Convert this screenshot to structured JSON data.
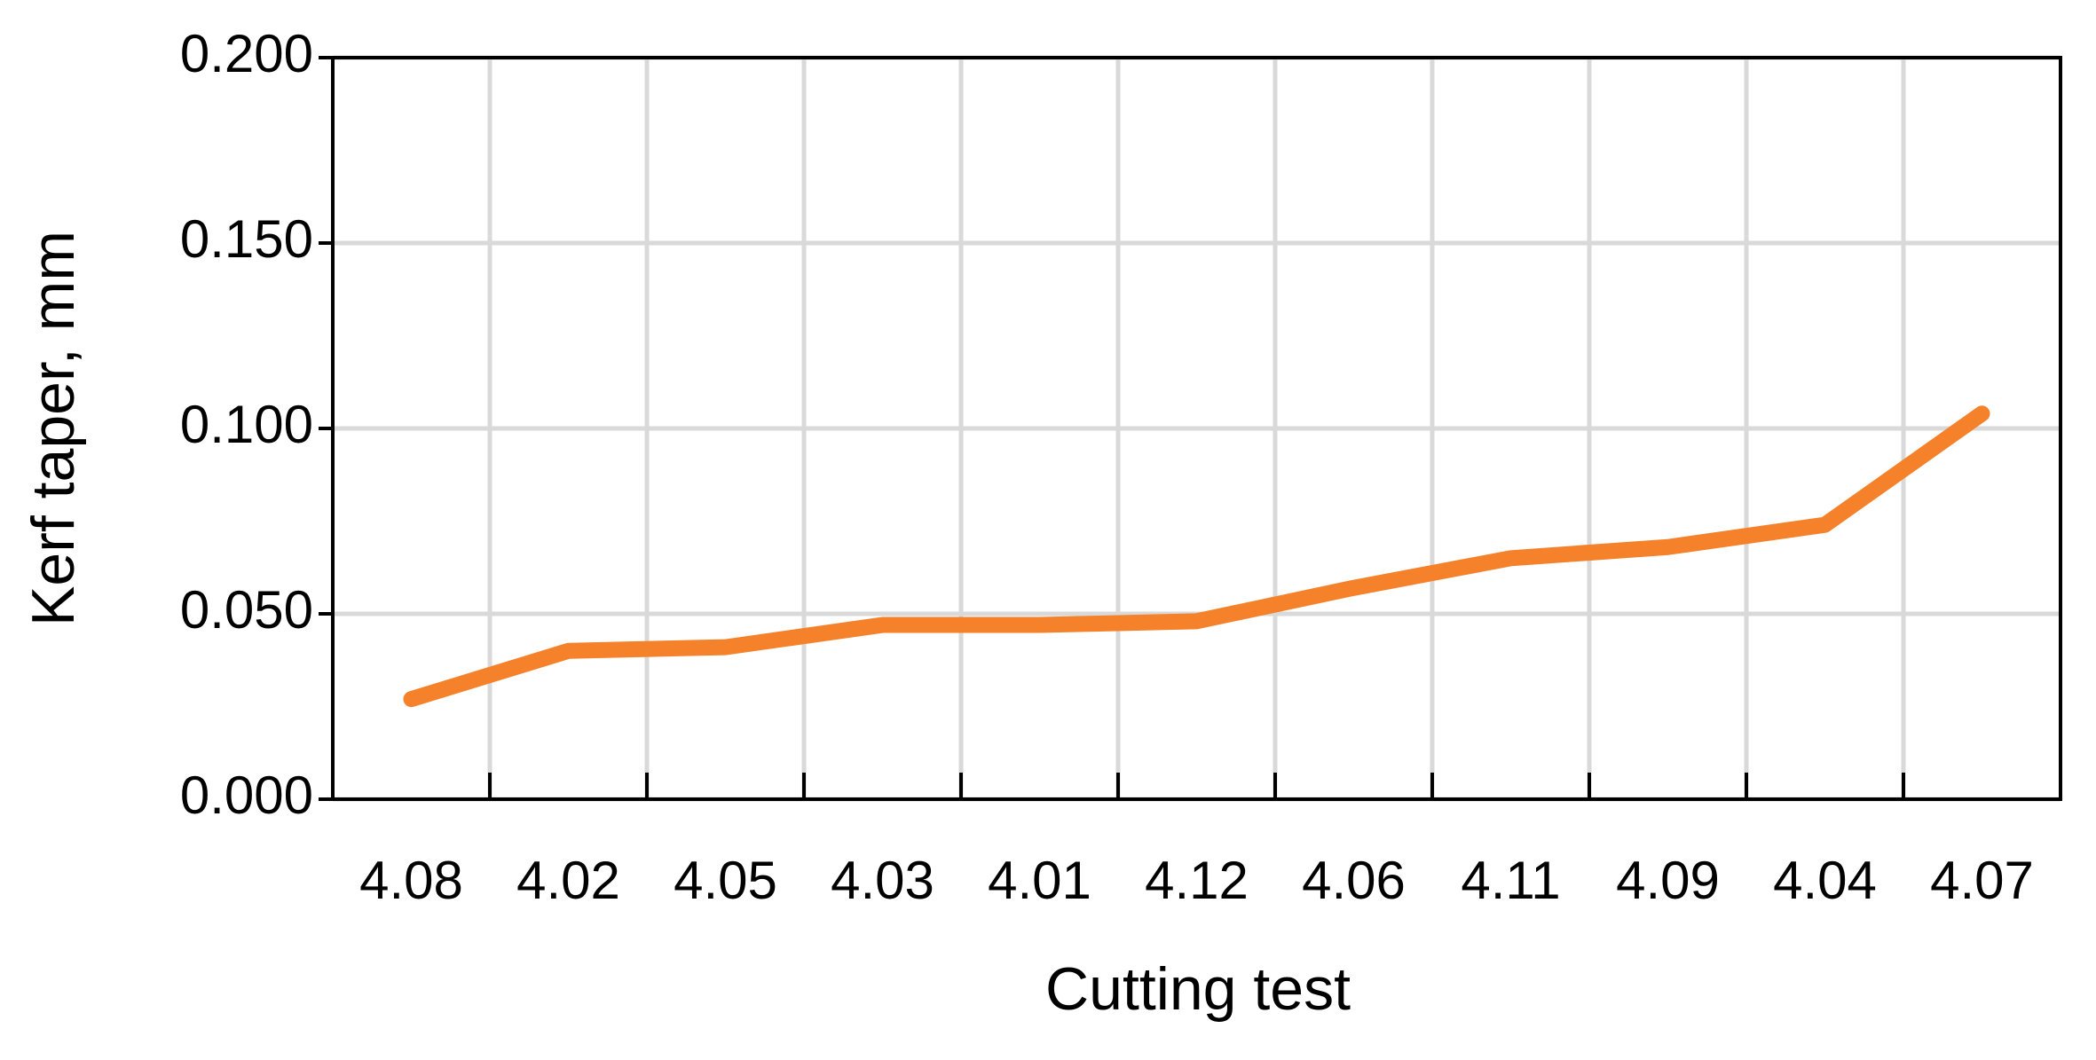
{
  "chart_data": {
    "type": "line",
    "x_label": "Cutting test",
    "y_label": "Kerf taper, mm",
    "categories": [
      "4.08",
      "4.02",
      "4.05",
      "4.03",
      "4.01",
      "4.12",
      "4.06",
      "4.11",
      "4.09",
      "4.04",
      "4.07"
    ],
    "values": [
      0.027,
      0.04,
      0.041,
      0.047,
      0.047,
      0.048,
      0.057,
      0.065,
      0.068,
      0.074,
      0.104
    ],
    "color": "#f5812b",
    "ylim": [
      0,
      0.2
    ],
    "yticks": [
      {
        "value": 0,
        "label": "0.000"
      },
      {
        "value": 0.05,
        "label": "0.050"
      },
      {
        "value": 0.1,
        "label": "0.100"
      },
      {
        "value": 0.15,
        "label": "0.150"
      },
      {
        "value": 0.2,
        "label": "0.200"
      }
    ],
    "grid": true
  }
}
